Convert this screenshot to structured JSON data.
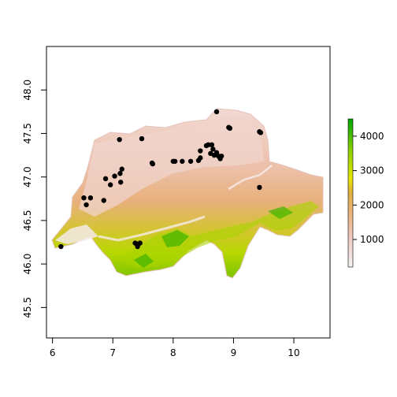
{
  "chart_data": {
    "type": "raster-map",
    "title": "",
    "xlabel": "",
    "ylabel": "",
    "xlim": [
      5.9,
      10.6
    ],
    "ylim": [
      45.15,
      48.5
    ],
    "x_ticks": [
      6,
      7,
      8,
      9,
      10
    ],
    "y_ticks": [
      45.5,
      46.0,
      46.5,
      47.0,
      47.5,
      48.0
    ],
    "x_tick_labels": [
      "6",
      "7",
      "8",
      "9",
      "10"
    ],
    "y_tick_labels": [
      "45.5",
      "46.0",
      "46.5",
      "47.0",
      "47.5",
      "48.0"
    ],
    "legend": {
      "placement": "right",
      "range": [
        200,
        4500
      ],
      "ticks": [
        1000,
        2000,
        3000,
        4000
      ],
      "tick_labels": [
        "1000",
        "2000",
        "3000",
        "4000"
      ],
      "colors": [
        "#f2f2f2",
        "#ecb176",
        "#e6e600",
        "#00a600"
      ]
    },
    "points_color": "#000000",
    "points": [
      [
        6.14,
        46.2
      ],
      [
        6.52,
        46.76
      ],
      [
        6.56,
        46.68
      ],
      [
        6.63,
        46.76
      ],
      [
        6.85,
        46.73
      ],
      [
        6.88,
        46.98
      ],
      [
        6.96,
        46.91
      ],
      [
        7.03,
        47.01
      ],
      [
        7.12,
        47.04
      ],
      [
        7.15,
        47.09
      ],
      [
        7.13,
        46.94
      ],
      [
        7.11,
        47.43
      ],
      [
        7.37,
        46.24
      ],
      [
        7.4,
        46.23
      ],
      [
        7.41,
        46.2
      ],
      [
        7.45,
        46.24
      ],
      [
        7.48,
        47.44
      ],
      [
        7.65,
        47.16
      ],
      [
        7.66,
        47.15
      ],
      [
        8.0,
        47.18
      ],
      [
        8.03,
        47.18
      ],
      [
        8.15,
        47.18
      ],
      [
        8.29,
        47.18
      ],
      [
        8.42,
        47.19
      ],
      [
        8.45,
        47.22
      ],
      [
        8.45,
        47.3
      ],
      [
        8.55,
        47.36
      ],
      [
        8.58,
        47.37
      ],
      [
        8.64,
        47.37
      ],
      [
        8.66,
        47.32
      ],
      [
        8.62,
        47.27
      ],
      [
        8.68,
        47.25
      ],
      [
        8.72,
        47.28
      ],
      [
        8.75,
        47.24
      ],
      [
        8.78,
        47.21
      ],
      [
        8.8,
        47.24
      ],
      [
        8.72,
        47.75
      ],
      [
        8.92,
        47.57
      ],
      [
        8.94,
        47.56
      ],
      [
        9.43,
        47.52
      ],
      [
        9.45,
        47.51
      ],
      [
        9.43,
        46.88
      ]
    ]
  }
}
